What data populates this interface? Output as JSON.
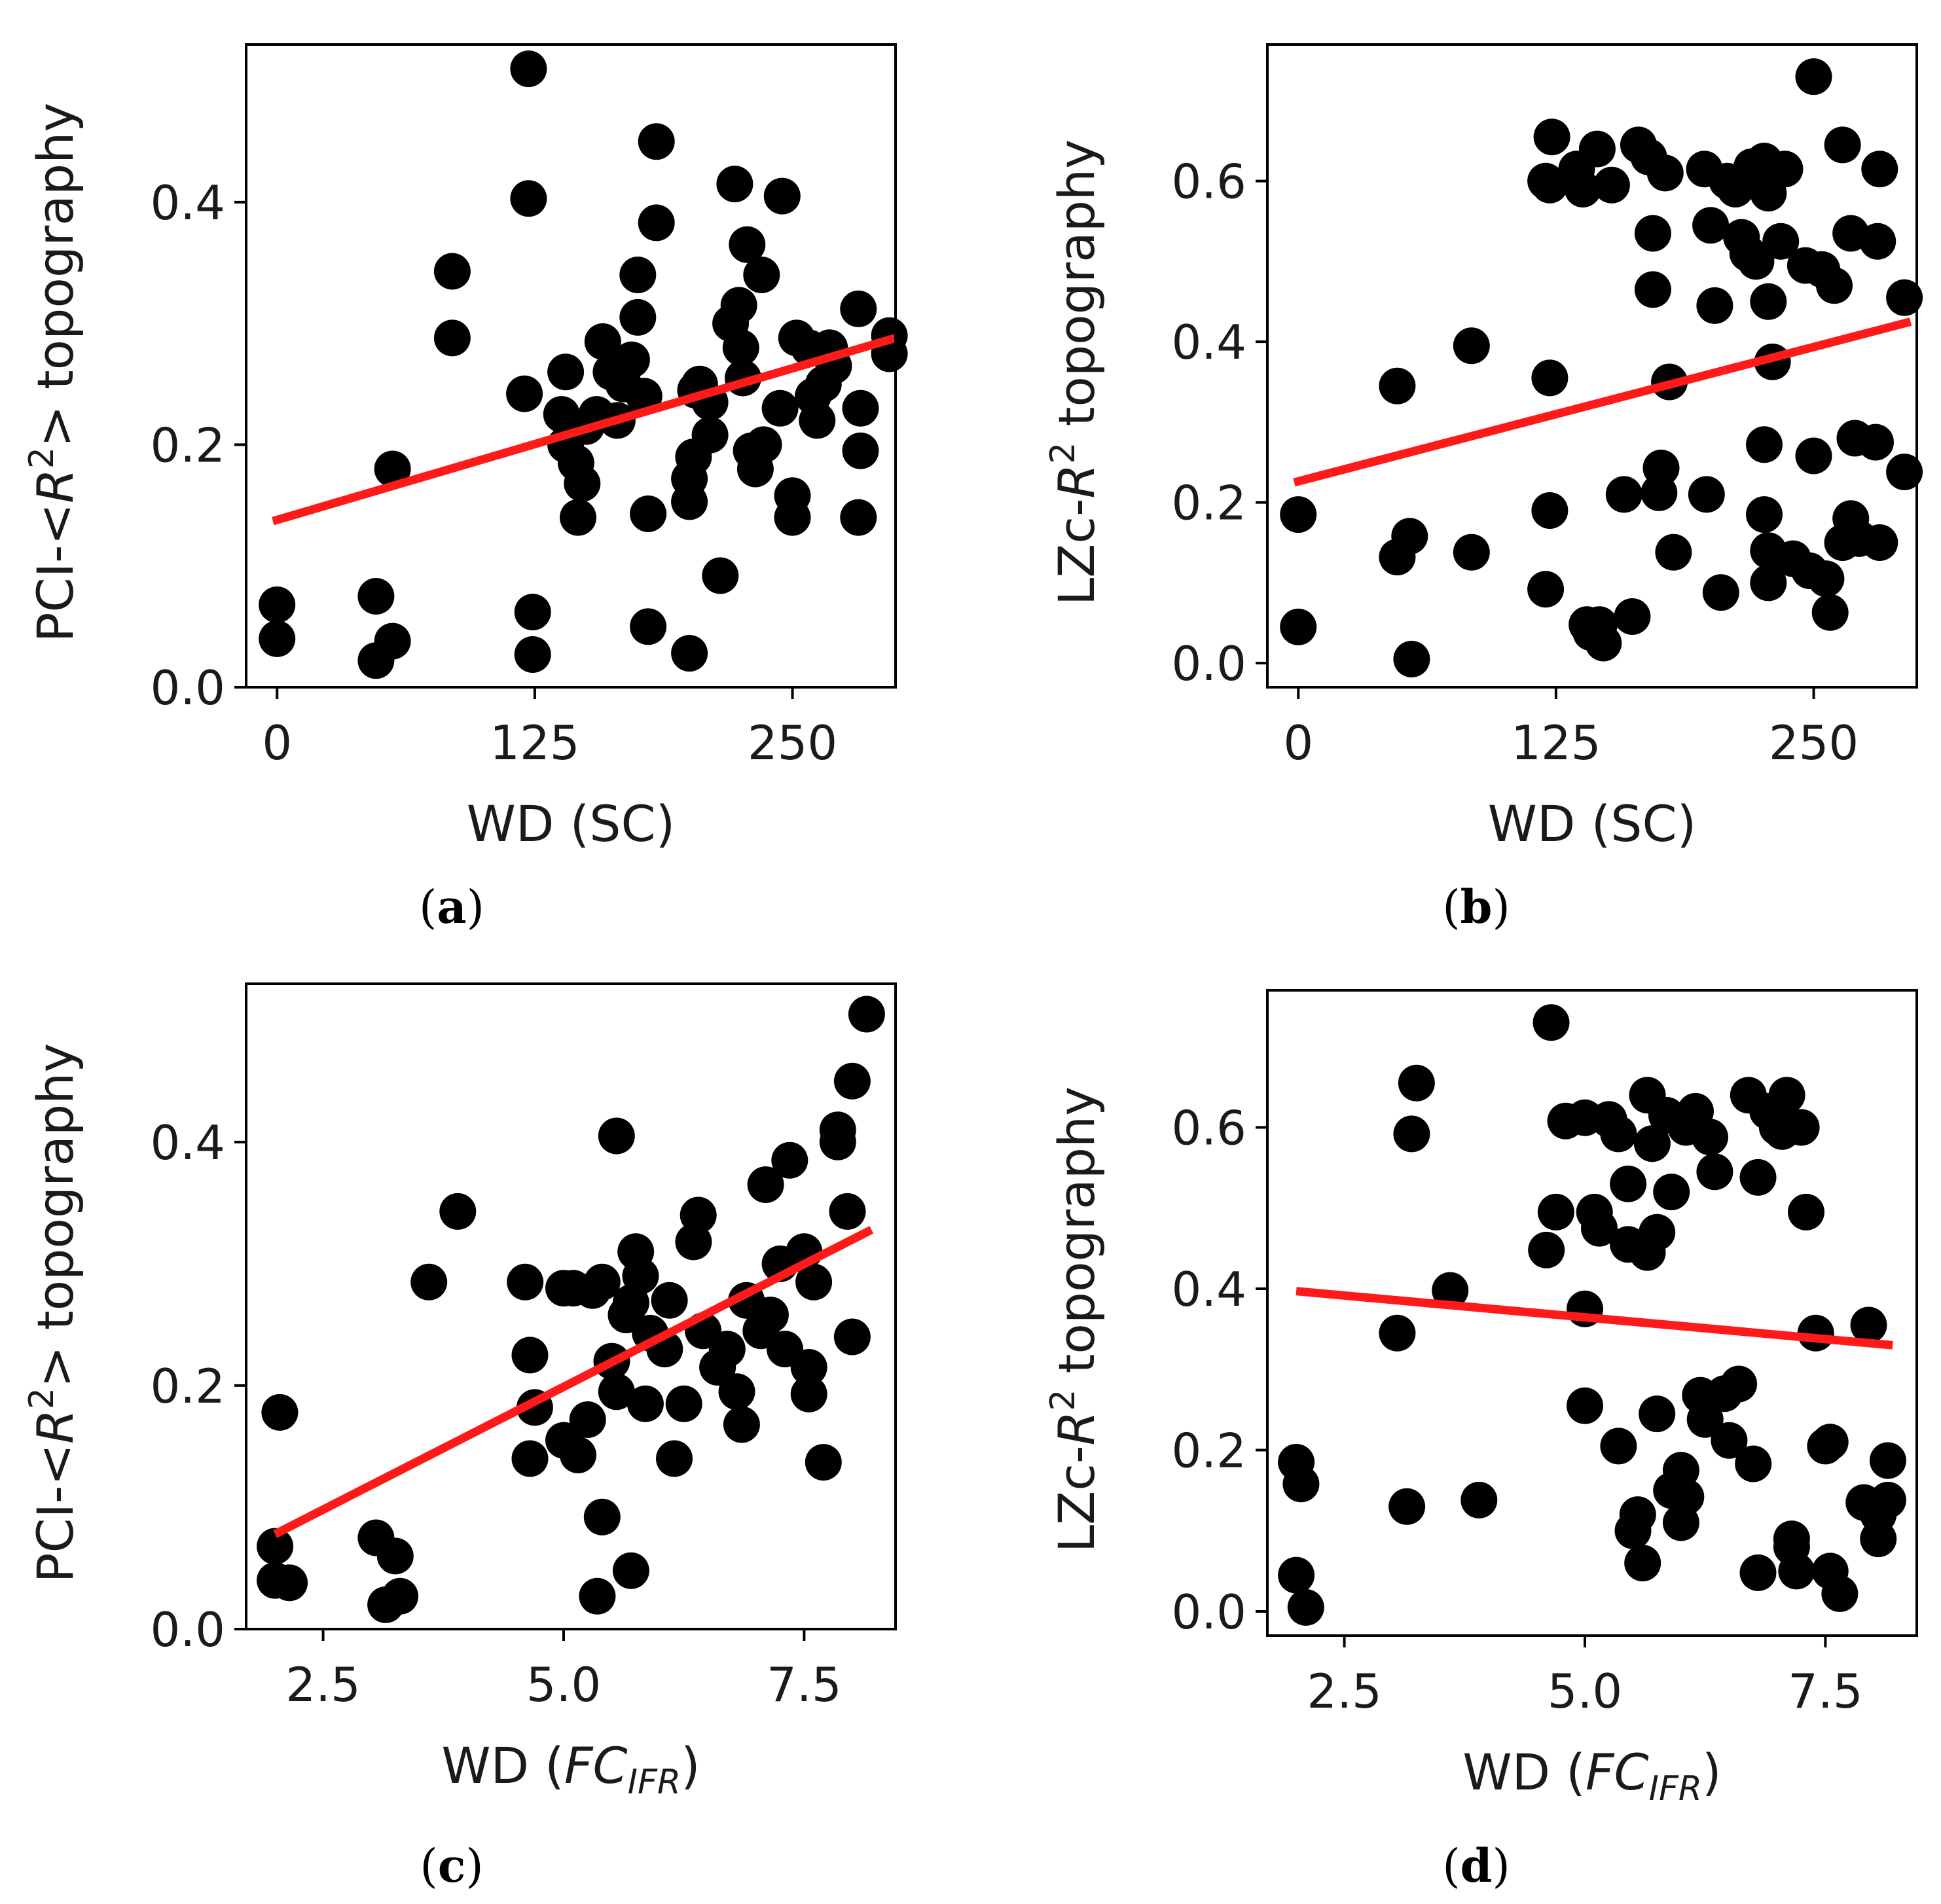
{
  "chart_data": [
    {
      "id": "a",
      "type": "scatter",
      "caption": "a",
      "xlabel": {
        "prefix": "WD (",
        "sub": "",
        "ital": "",
        "plain": "SC",
        "suffix": ")"
      },
      "ylabel": {
        "prefix": "PCI-<",
        "ital": "R",
        "sup": "2",
        "suffix": "> topography"
      },
      "xlim": [
        -15,
        300
      ],
      "ylim": [
        0.0,
        0.53
      ],
      "xticks": [
        0,
        125,
        250
      ],
      "xtick_labels": [
        "0",
        "125",
        "250"
      ],
      "yticks": [
        0.0,
        0.2,
        0.4
      ],
      "ytick_labels": [
        "0.0",
        "0.2",
        "0.4"
      ],
      "fit_line": {
        "x": [
          -2,
          300
        ],
        "y": [
          0.137,
          0.288
        ]
      },
      "points": [
        [
          0,
          0.068
        ],
        [
          0,
          0.04
        ],
        [
          48,
          0.075
        ],
        [
          48,
          0.022
        ],
        [
          56,
          0.038
        ],
        [
          56,
          0.18
        ],
        [
          85,
          0.343
        ],
        [
          85,
          0.288
        ],
        [
          122,
          0.51
        ],
        [
          122,
          0.403
        ],
        [
          120,
          0.242
        ],
        [
          124,
          0.062
        ],
        [
          124,
          0.027
        ],
        [
          140,
          0.26
        ],
        [
          138,
          0.225
        ],
        [
          140,
          0.2
        ],
        [
          145,
          0.185
        ],
        [
          148,
          0.168
        ],
        [
          146,
          0.14
        ],
        [
          155,
          0.225
        ],
        [
          150,
          0.215
        ],
        [
          158,
          0.285
        ],
        [
          162,
          0.26
        ],
        [
          165,
          0.22
        ],
        [
          168,
          0.25
        ],
        [
          172,
          0.27
        ],
        [
          175,
          0.305
        ],
        [
          175,
          0.34
        ],
        [
          178,
          0.24
        ],
        [
          180,
          0.143
        ],
        [
          180,
          0.05
        ],
        [
          184,
          0.45
        ],
        [
          184,
          0.383
        ],
        [
          200,
          0.153
        ],
        [
          200,
          0.172
        ],
        [
          202,
          0.19
        ],
        [
          203,
          0.245
        ],
        [
          205,
          0.25
        ],
        [
          210,
          0.208
        ],
        [
          210,
          0.235
        ],
        [
          215,
          0.092
        ],
        [
          200,
          0.028
        ],
        [
          220,
          0.3
        ],
        [
          222,
          0.415
        ],
        [
          224,
          0.315
        ],
        [
          225,
          0.28
        ],
        [
          226,
          0.255
        ],
        [
          228,
          0.365
        ],
        [
          230,
          0.195
        ],
        [
          232,
          0.18
        ],
        [
          235,
          0.34
        ],
        [
          236,
          0.2
        ],
        [
          245,
          0.405
        ],
        [
          244,
          0.23
        ],
        [
          250,
          0.158
        ],
        [
          250,
          0.14
        ],
        [
          252,
          0.288
        ],
        [
          258,
          0.28
        ],
        [
          260,
          0.24
        ],
        [
          262,
          0.22
        ],
        [
          265,
          0.25
        ],
        [
          268,
          0.28
        ],
        [
          270,
          0.265
        ],
        [
          282,
          0.312
        ],
        [
          283,
          0.23
        ],
        [
          283,
          0.195
        ],
        [
          282,
          0.14
        ],
        [
          297,
          0.29
        ],
        [
          297,
          0.275
        ]
      ]
    },
    {
      "id": "b",
      "type": "scatter",
      "caption": "b",
      "xlabel": {
        "prefix": "WD (",
        "sub": "",
        "ital": "",
        "plain": "SC",
        "suffix": ")"
      },
      "ylabel": {
        "prefix": "LZc-",
        "ital": "R",
        "sup": "2",
        "suffix": " topography"
      },
      "xlim": [
        -15,
        300
      ],
      "ylim": [
        -0.03,
        0.77
      ],
      "xticks": [
        0,
        125,
        250
      ],
      "xtick_labels": [
        "0",
        "125",
        "250"
      ],
      "yticks": [
        0.0,
        0.2,
        0.4,
        0.6
      ],
      "ytick_labels": [
        "0.0",
        "0.2",
        "0.4",
        "0.6"
      ],
      "fit_line": {
        "x": [
          -2,
          297
        ],
        "y": [
          0.225,
          0.425
        ]
      },
      "points": [
        [
          0,
          0.185
        ],
        [
          0,
          0.045
        ],
        [
          48,
          0.345
        ],
        [
          48,
          0.132
        ],
        [
          54,
          0.158
        ],
        [
          55,
          0.005
        ],
        [
          84,
          0.395
        ],
        [
          84,
          0.138
        ],
        [
          120,
          0.6
        ],
        [
          122,
          0.595
        ],
        [
          123,
          0.655
        ],
        [
          122,
          0.355
        ],
        [
          122,
          0.19
        ],
        [
          120,
          0.092
        ],
        [
          135,
          0.615
        ],
        [
          138,
          0.59
        ],
        [
          140,
          0.048
        ],
        [
          142,
          0.038
        ],
        [
          145,
          0.64
        ],
        [
          146,
          0.048
        ],
        [
          148,
          0.025
        ],
        [
          152,
          0.595
        ],
        [
          158,
          0.21
        ],
        [
          162,
          0.058
        ],
        [
          165,
          0.645
        ],
        [
          170,
          0.63
        ],
        [
          172,
          0.535
        ],
        [
          172,
          0.465
        ],
        [
          175,
          0.212
        ],
        [
          176,
          0.243
        ],
        [
          178,
          0.61
        ],
        [
          180,
          0.35
        ],
        [
          182,
          0.138
        ],
        [
          197,
          0.615
        ],
        [
          198,
          0.21
        ],
        [
          200,
          0.545
        ],
        [
          202,
          0.445
        ],
        [
          205,
          0.088
        ],
        [
          208,
          0.6
        ],
        [
          212,
          0.59
        ],
        [
          215,
          0.53
        ],
        [
          218,
          0.51
        ],
        [
          220,
          0.618
        ],
        [
          222,
          0.5
        ],
        [
          225,
          0.6
        ],
        [
          226,
          0.625
        ],
        [
          228,
          0.585
        ],
        [
          228,
          0.45
        ],
        [
          226,
          0.272
        ],
        [
          226,
          0.185
        ],
        [
          228,
          0.14
        ],
        [
          228,
          0.1
        ],
        [
          230,
          0.375
        ],
        [
          234,
          0.525
        ],
        [
          236,
          0.615
        ],
        [
          240,
          0.13
        ],
        [
          246,
          0.495
        ],
        [
          248,
          0.115
        ],
        [
          250,
          0.73
        ],
        [
          250,
          0.258
        ],
        [
          254,
          0.49
        ],
        [
          256,
          0.105
        ],
        [
          260,
          0.47
        ],
        [
          258,
          0.063
        ],
        [
          264,
          0.645
        ],
        [
          264,
          0.15
        ],
        [
          268,
          0.535
        ],
        [
          268,
          0.18
        ],
        [
          270,
          0.28
        ],
        [
          272,
          0.155
        ],
        [
          280,
          0.275
        ],
        [
          281,
          0.525
        ],
        [
          282,
          0.615
        ],
        [
          282,
          0.15
        ],
        [
          294,
          0.455
        ],
        [
          294,
          0.238
        ]
      ]
    },
    {
      "id": "c",
      "type": "scatter",
      "caption": "c",
      "xlabel": {
        "prefix": "WD (",
        "ital": "FC",
        "sub": "IFR",
        "plain": "",
        "suffix": ")"
      },
      "ylabel": {
        "prefix": "PCI-<",
        "ital": "R",
        "sup": "2",
        "suffix": "> topography"
      },
      "xlim": [
        1.7,
        8.45
      ],
      "ylim": [
        0.0,
        0.53
      ],
      "xticks": [
        2.5,
        5.0,
        7.5
      ],
      "xtick_labels": [
        "2.5",
        "5.0",
        "7.5"
      ],
      "yticks": [
        0.0,
        0.2,
        0.4
      ],
      "ytick_labels": [
        "0.0",
        "0.2",
        "0.4"
      ],
      "fit_line": {
        "x": [
          2.0,
          8.2
        ],
        "y": [
          0.078,
          0.328
        ]
      },
      "points": [
        [
          2.05,
          0.178
        ],
        [
          2.0,
          0.068
        ],
        [
          2.0,
          0.04
        ],
        [
          2.15,
          0.038
        ],
        [
          3.05,
          0.075
        ],
        [
          3.25,
          0.06
        ],
        [
          3.15,
          0.02
        ],
        [
          3.3,
          0.027
        ],
        [
          3.6,
          0.285
        ],
        [
          3.9,
          0.343
        ],
        [
          4.6,
          0.285
        ],
        [
          4.65,
          0.225
        ],
        [
          4.7,
          0.182
        ],
        [
          4.65,
          0.14
        ],
        [
          5.0,
          0.155
        ],
        [
          5.0,
          0.28
        ],
        [
          5.1,
          0.28
        ],
        [
          5.15,
          0.143
        ],
        [
          5.25,
          0.172
        ],
        [
          5.3,
          0.278
        ],
        [
          5.4,
          0.285
        ],
        [
          5.4,
          0.092
        ],
        [
          5.35,
          0.027
        ],
        [
          5.55,
          0.405
        ],
        [
          5.5,
          0.22
        ],
        [
          5.55,
          0.195
        ],
        [
          5.65,
          0.258
        ],
        [
          5.7,
          0.268
        ],
        [
          5.7,
          0.048
        ],
        [
          5.75,
          0.31
        ],
        [
          5.8,
          0.29
        ],
        [
          5.85,
          0.185
        ],
        [
          5.9,
          0.243
        ],
        [
          6.05,
          0.23
        ],
        [
          6.1,
          0.27
        ],
        [
          6.15,
          0.14
        ],
        [
          6.25,
          0.185
        ],
        [
          6.4,
          0.34
        ],
        [
          6.35,
          0.318
        ],
        [
          6.45,
          0.245
        ],
        [
          6.6,
          0.215
        ],
        [
          6.7,
          0.23
        ],
        [
          6.8,
          0.195
        ],
        [
          6.85,
          0.168
        ],
        [
          6.9,
          0.27
        ],
        [
          7.1,
          0.365
        ],
        [
          7.05,
          0.245
        ],
        [
          7.15,
          0.258
        ],
        [
          7.25,
          0.3
        ],
        [
          7.3,
          0.23
        ],
        [
          7.35,
          0.385
        ],
        [
          7.5,
          0.31
        ],
        [
          7.55,
          0.215
        ],
        [
          7.55,
          0.193
        ],
        [
          7.6,
          0.285
        ],
        [
          7.7,
          0.137
        ],
        [
          7.85,
          0.41
        ],
        [
          7.85,
          0.4
        ],
        [
          7.95,
          0.343
        ],
        [
          8.0,
          0.45
        ],
        [
          8.0,
          0.24
        ],
        [
          8.15,
          0.505
        ]
      ]
    },
    {
      "id": "d",
      "type": "scatter",
      "caption": "d",
      "xlabel": {
        "prefix": "WD (",
        "ital": "FC",
        "sub": "IFR",
        "plain": "",
        "suffix": ")"
      },
      "ylabel": {
        "prefix": "LZc-",
        "ital": "R",
        "sup": "2",
        "suffix": " topography"
      },
      "xlim": [
        1.7,
        8.45
      ],
      "ylim": [
        -0.03,
        0.77
      ],
      "xticks": [
        2.5,
        5.0,
        7.5
      ],
      "xtick_labels": [
        "2.5",
        "5.0",
        "7.5"
      ],
      "yticks": [
        0.0,
        0.2,
        0.4,
        0.6
      ],
      "ytick_labels": [
        "0.0",
        "0.2",
        "0.4",
        "0.6"
      ],
      "fit_line": {
        "x": [
          2.0,
          8.2
        ],
        "y": [
          0.397,
          0.33
        ]
      },
      "points": [
        [
          2.0,
          0.185
        ],
        [
          2.05,
          0.158
        ],
        [
          2.0,
          0.045
        ],
        [
          2.1,
          0.005
        ],
        [
          3.05,
          0.345
        ],
        [
          3.15,
          0.13
        ],
        [
          3.2,
          0.592
        ],
        [
          3.25,
          0.655
        ],
        [
          3.6,
          0.398
        ],
        [
          3.9,
          0.138
        ],
        [
          4.6,
          0.448
        ],
        [
          4.7,
          0.495
        ],
        [
          4.65,
          0.73
        ],
        [
          4.8,
          0.608
        ],
        [
          5.0,
          0.612
        ],
        [
          5.0,
          0.375
        ],
        [
          5.0,
          0.255
        ],
        [
          5.1,
          0.495
        ],
        [
          5.15,
          0.475
        ],
        [
          5.25,
          0.61
        ],
        [
          5.35,
          0.592
        ],
        [
          5.35,
          0.205
        ],
        [
          5.45,
          0.455
        ],
        [
          5.45,
          0.53
        ],
        [
          5.5,
          0.1
        ],
        [
          5.55,
          0.12
        ],
        [
          5.6,
          0.06
        ],
        [
          5.65,
          0.64
        ],
        [
          5.65,
          0.445
        ],
        [
          5.7,
          0.58
        ],
        [
          5.75,
          0.47
        ],
        [
          5.75,
          0.245
        ],
        [
          5.85,
          0.615
        ],
        [
          5.9,
          0.52
        ],
        [
          5.9,
          0.15
        ],
        [
          6.0,
          0.175
        ],
        [
          6.0,
          0.11
        ],
        [
          6.05,
          0.142
        ],
        [
          6.05,
          0.6
        ],
        [
          6.15,
          0.62
        ],
        [
          6.2,
          0.268
        ],
        [
          6.25,
          0.238
        ],
        [
          6.3,
          0.588
        ],
        [
          6.35,
          0.545
        ],
        [
          6.45,
          0.27
        ],
        [
          6.5,
          0.212
        ],
        [
          6.6,
          0.282
        ],
        [
          6.7,
          0.64
        ],
        [
          6.75,
          0.183
        ],
        [
          6.8,
          0.538
        ],
        [
          6.8,
          0.048
        ],
        [
          6.9,
          0.62
        ],
        [
          7.0,
          0.6
        ],
        [
          7.05,
          0.595
        ],
        [
          7.1,
          0.64
        ],
        [
          7.15,
          0.09
        ],
        [
          7.15,
          0.08
        ],
        [
          7.2,
          0.05
        ],
        [
          7.25,
          0.6
        ],
        [
          7.3,
          0.495
        ],
        [
          7.4,
          0.345
        ],
        [
          7.5,
          0.205
        ],
        [
          7.55,
          0.21
        ],
        [
          7.55,
          0.05
        ],
        [
          7.65,
          0.022
        ],
        [
          7.9,
          0.135
        ],
        [
          7.95,
          0.355
        ],
        [
          8.05,
          0.12
        ],
        [
          8.05,
          0.09
        ],
        [
          8.15,
          0.187
        ],
        [
          8.15,
          0.138
        ]
      ]
    }
  ]
}
